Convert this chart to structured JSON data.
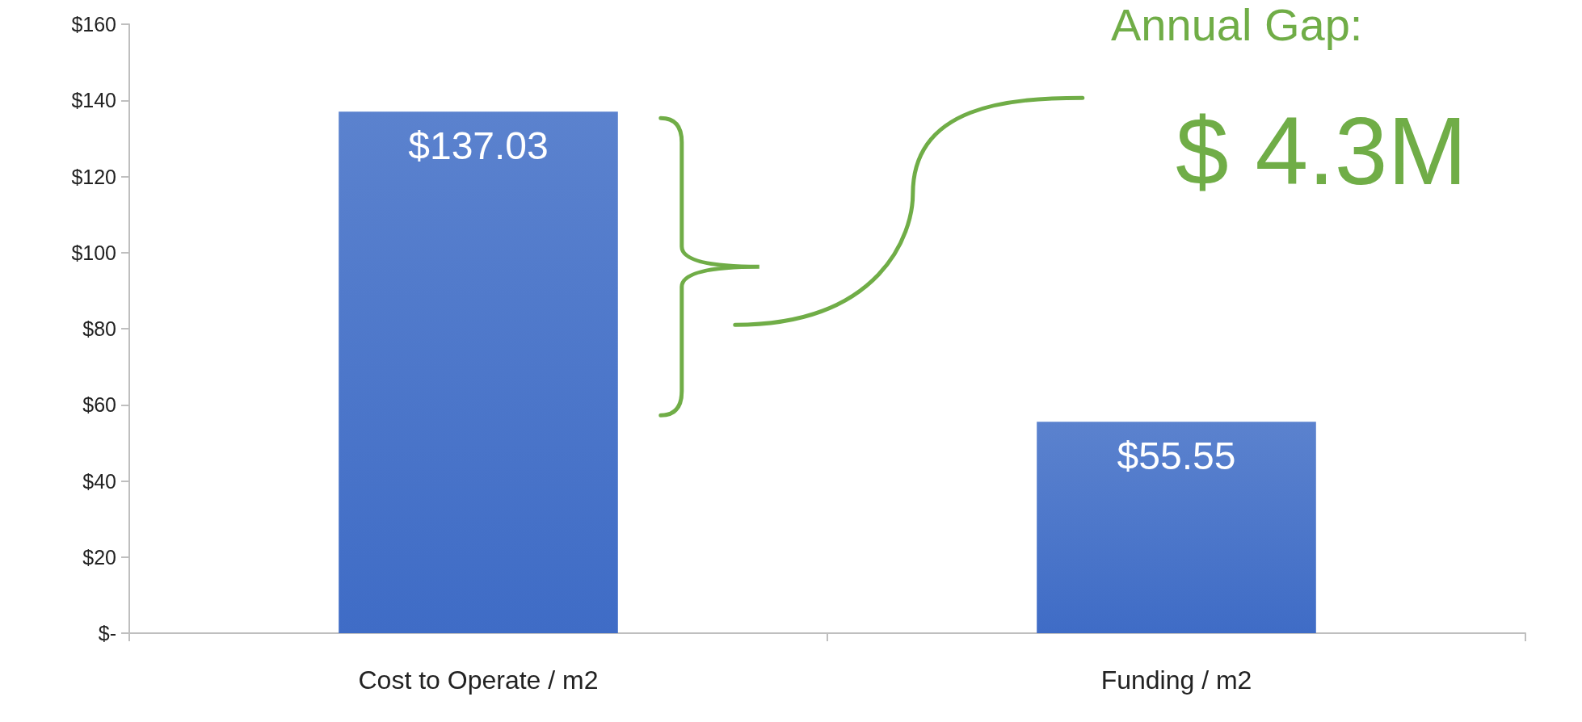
{
  "chart_data": {
    "type": "bar",
    "categories": [
      "Cost to Operate / m2",
      "Funding / m2"
    ],
    "values": [
      137.03,
      55.55
    ],
    "value_labels": [
      "$137.03",
      "$55.55"
    ],
    "color": "#3f6cc6",
    "ylim": [
      0,
      160
    ],
    "yticks": [
      {
        "value": 0,
        "label": "$-"
      },
      {
        "value": 20,
        "label": "$20"
      },
      {
        "value": 40,
        "label": "$40"
      },
      {
        "value": 60,
        "label": "$60"
      },
      {
        "value": 80,
        "label": "$80"
      },
      {
        "value": 100,
        "label": "$100"
      },
      {
        "value": 120,
        "label": "$120"
      },
      {
        "value": 140,
        "label": "$140"
      },
      {
        "value": 160,
        "label": "$160"
      }
    ],
    "annotations": [
      "Annual Gap:",
      "$ 4.3M"
    ],
    "grid": false
  }
}
